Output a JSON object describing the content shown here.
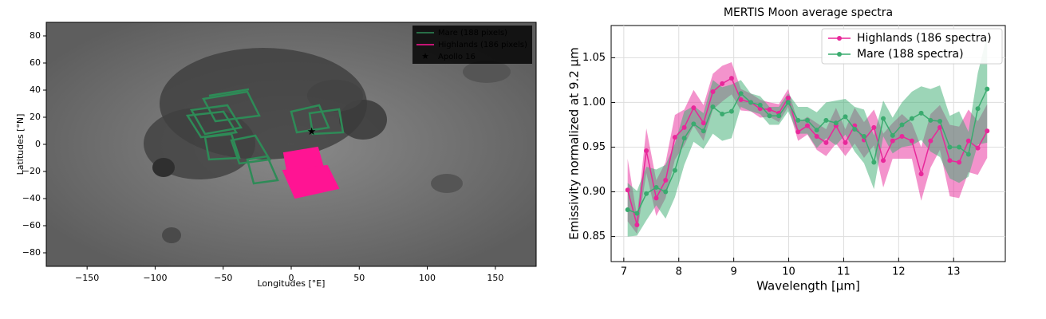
{
  "chart_data": [
    {
      "type": "map",
      "x_label": "Longitudes [°E]",
      "y_label": "Latitudes [°N]",
      "xlim": [
        -180,
        180
      ],
      "ylim": [
        -90,
        90
      ],
      "xticks": [
        {
          "value": -150,
          "label": "−150"
        },
        {
          "value": -100,
          "label": "−100"
        },
        {
          "value": -50,
          "label": "−50"
        },
        0,
        50,
        100,
        150
      ],
      "yticks": [
        {
          "value": -80,
          "label": "−80"
        },
        {
          "value": -60,
          "label": "−60"
        },
        {
          "value": -40,
          "label": "−40"
        },
        {
          "value": -20,
          "label": "−20"
        },
        0,
        20,
        40,
        60,
        80
      ],
      "series": [
        {
          "name": "Mare (188 pixels)",
          "color": "#2e8b57"
        },
        {
          "name": "Highlands (186 pixels)",
          "color": "#ff1493"
        }
      ],
      "points": [
        {
          "name": "Apollo 16",
          "x": 15,
          "y": 9,
          "color": "#ffffff"
        }
      ],
      "legend": "upper right"
    },
    {
      "type": "line",
      "title": "MERTIS Moon average spectra",
      "x_label": "Wavelength [µm]",
      "y_label": "Emissivity normalized at 9.2 µm",
      "xlim": [
        6.77,
        13.94
      ],
      "ylim": [
        0.822,
        1.086
      ],
      "xticks": [
        7,
        8,
        9,
        10,
        11,
        12,
        13
      ],
      "yticks": [
        0.85,
        {
          "value": 0.9,
          "label": "0.90"
        },
        0.95,
        {
          "value": 1,
          "label": "1.00"
        },
        1.05
      ],
      "grid": true,
      "legend": "upper right",
      "x": [
        7.07,
        7.24,
        7.41,
        7.59,
        7.76,
        7.93,
        8.1,
        8.27,
        8.45,
        8.62,
        8.79,
        8.96,
        9.13,
        9.31,
        9.48,
        9.65,
        9.82,
        9.99,
        10.17,
        10.34,
        10.51,
        10.68,
        10.86,
        11.03,
        11.2,
        11.37,
        11.55,
        11.72,
        11.89,
        12.06,
        12.24,
        12.41,
        12.58,
        12.75,
        12.93,
        13.1,
        13.27,
        13.44,
        13.61
      ],
      "series": [
        {
          "name": "Highlands (186 spectra)",
          "color": "#e8289a",
          "values": [
            0.902,
            0.863,
            0.946,
            0.893,
            0.913,
            0.961,
            0.972,
            0.994,
            0.977,
            1.012,
            1.021,
            1.027,
            1.003,
            1.0,
            0.993,
            0.992,
            0.988,
            1.005,
            0.967,
            0.974,
            0.962,
            0.955,
            0.974,
            0.955,
            0.974,
            0.958,
            0.972,
            0.935,
            0.957,
            0.962,
            0.957,
            0.92,
            0.957,
            0.972,
            0.935,
            0.933,
            0.957,
            0.949,
            0.968
          ],
          "errors": [
            0.035,
            0.01,
            0.025,
            0.02,
            0.02,
            0.025,
            0.02,
            0.02,
            0.02,
            0.02,
            0.02,
            0.018,
            0.012,
            0.01,
            0.01,
            0.008,
            0.01,
            0.01,
            0.01,
            0.01,
            0.015,
            0.015,
            0.02,
            0.015,
            0.02,
            0.02,
            0.02,
            0.03,
            0.02,
            0.025,
            0.02,
            0.03,
            0.03,
            0.025,
            0.04,
            0.04,
            0.035,
            0.03,
            0.03
          ]
        },
        {
          "name": "Mare (188 spectra)",
          "color": "#3aab6f",
          "values": [
            0.88,
            0.876,
            0.898,
            0.905,
            0.9,
            0.924,
            0.96,
            0.976,
            0.968,
            0.995,
            0.987,
            0.99,
            1.01,
            1.0,
            0.997,
            0.985,
            0.985,
            1.0,
            0.98,
            0.98,
            0.969,
            0.98,
            0.977,
            0.984,
            0.97,
            0.962,
            0.933,
            0.982,
            0.963,
            0.975,
            0.982,
            0.988,
            0.98,
            0.979,
            0.95,
            0.95,
            0.942,
            0.993,
            1.015
          ],
          "errors": [
            0.03,
            0.025,
            0.03,
            0.02,
            0.03,
            0.03,
            0.03,
            0.02,
            0.02,
            0.03,
            0.03,
            0.03,
            0.015,
            0.01,
            0.01,
            0.01,
            0.01,
            0.01,
            0.015,
            0.015,
            0.02,
            0.02,
            0.025,
            0.02,
            0.025,
            0.03,
            0.03,
            0.02,
            0.02,
            0.025,
            0.03,
            0.03,
            0.035,
            0.04,
            0.035,
            0.04,
            0.025,
            0.04,
            0.06
          ]
        }
      ]
    }
  ]
}
